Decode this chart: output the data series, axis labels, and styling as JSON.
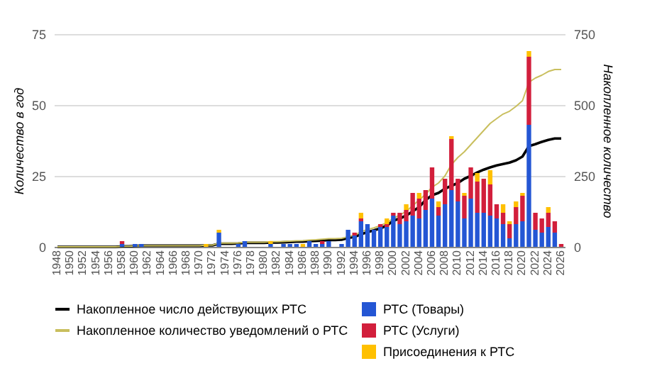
{
  "chart_data": {
    "type": "bar",
    "stacked": true,
    "categories": [
      "1948",
      null,
      "1950",
      null,
      "1952",
      null,
      "1954",
      null,
      "1956",
      null,
      "1958",
      null,
      "1960",
      null,
      "1962",
      null,
      "1964",
      null,
      "1966",
      null,
      "1968",
      null,
      "1970",
      null,
      "1972",
      null,
      "1974",
      null,
      "1976",
      null,
      "1978",
      null,
      "1980",
      null,
      "1982",
      null,
      "1984",
      null,
      "1986",
      null,
      "1988",
      null,
      "1990",
      null,
      "1992",
      null,
      "1994",
      null,
      "1996",
      null,
      "1998",
      null,
      "2000",
      null,
      "2002",
      null,
      "2004",
      null,
      "2006",
      null,
      "2008",
      null,
      "2010",
      null,
      "2012",
      null,
      "2014",
      null,
      "2016",
      null,
      "2018",
      null,
      "2020",
      null,
      "2022",
      null,
      "2024",
      null,
      "2026"
    ],
    "series": [
      {
        "name": "РТС (Товары)",
        "color": "#2456d4",
        "type": "bar",
        "values": [
          0,
          0,
          0,
          0,
          0,
          0,
          0,
          0,
          0,
          0,
          1,
          0,
          1,
          1,
          0,
          0,
          0,
          0,
          0,
          0,
          0,
          0,
          0,
          0,
          0,
          5,
          0,
          0,
          1,
          2,
          0,
          0,
          0,
          1,
          0,
          1,
          1,
          1,
          0,
          2,
          1,
          1,
          2,
          0,
          1,
          6,
          4,
          9,
          8,
          6,
          7,
          7,
          11,
          8,
          9,
          11,
          10,
          13,
          17,
          11,
          15,
          20,
          16,
          10,
          17,
          12,
          12,
          11,
          10,
          8,
          3,
          8,
          9,
          43,
          6,
          5,
          7,
          5,
          0
        ]
      },
      {
        "name": "РТС (Услуги)",
        "color": "#d21f3c",
        "type": "bar",
        "values": [
          0,
          0,
          0,
          0,
          0,
          0,
          0,
          0,
          0,
          0,
          1,
          0,
          0,
          0,
          0,
          0,
          0,
          0,
          0,
          0,
          0,
          0,
          0,
          0,
          0,
          0,
          0,
          0,
          0,
          0,
          0,
          0,
          0,
          0,
          0,
          0,
          0,
          0,
          0,
          0,
          0,
          1,
          0,
          0,
          0,
          0,
          1,
          1,
          0,
          0,
          1,
          1,
          1,
          4,
          4,
          8,
          7,
          7,
          11,
          3,
          9,
          18,
          8,
          8,
          11,
          11,
          12,
          11,
          5,
          4,
          5,
          6,
          9,
          24,
          6,
          5,
          5,
          4,
          1
        ]
      },
      {
        "name": "Присоединения к РТС",
        "color": "#ffc000",
        "type": "bar",
        "values": [
          0,
          0,
          0,
          0,
          0,
          0,
          0,
          0,
          0,
          0,
          0,
          0,
          0,
          0,
          0,
          0,
          0,
          0,
          0,
          0,
          0,
          0,
          0,
          1,
          0,
          1,
          0,
          0,
          0,
          0,
          0,
          0,
          0,
          1,
          0,
          0,
          0,
          0,
          1,
          0,
          0,
          0,
          0,
          0,
          0,
          0,
          0,
          2,
          0,
          0,
          0,
          2,
          0,
          0,
          2,
          0,
          2,
          0,
          0,
          2,
          0,
          1,
          0,
          1,
          0,
          3,
          0,
          5,
          0,
          3,
          1,
          2,
          1,
          2,
          0,
          0,
          2,
          0,
          0
        ]
      },
      {
        "name": "Накопленное число действующих РТС",
        "color": "#000000",
        "type": "line",
        "axis": "y2",
        "values": [
          0,
          0,
          0,
          0,
          0,
          0,
          0,
          0,
          0,
          0,
          2,
          2,
          3,
          4,
          4,
          4,
          4,
          4,
          4,
          4,
          4,
          4,
          4,
          5,
          5,
          11,
          11,
          11,
          12,
          14,
          14,
          14,
          14,
          15,
          15,
          16,
          17,
          18,
          18,
          20,
          21,
          22,
          24,
          24,
          25,
          31,
          35,
          44,
          52,
          58,
          65,
          75,
          92,
          100,
          110,
          125,
          140,
          165,
          182,
          190,
          205,
          215,
          225,
          240,
          250,
          262,
          272,
          280,
          287,
          292,
          297,
          305,
          318,
          355,
          362,
          370,
          377,
          382,
          382
        ]
      },
      {
        "name": "Накопленное количество уведомлений о РТС",
        "color": "#c9bf5e",
        "type": "line",
        "axis": "y2",
        "values": [
          0,
          0,
          0,
          0,
          0,
          0,
          0,
          0,
          0,
          0,
          2,
          2,
          3,
          4,
          4,
          4,
          4,
          4,
          4,
          4,
          4,
          4,
          4,
          6,
          6,
          13,
          13,
          13,
          14,
          16,
          16,
          16,
          16,
          18,
          18,
          19,
          20,
          21,
          22,
          24,
          25,
          27,
          29,
          29,
          30,
          36,
          41,
          53,
          61,
          67,
          75,
          85,
          100,
          112,
          125,
          145,
          165,
          185,
          210,
          225,
          250,
          290,
          315,
          335,
          360,
          385,
          410,
          435,
          452,
          468,
          478,
          495,
          515,
          580,
          595,
          605,
          618,
          625,
          625
        ]
      }
    ],
    "ylabel": "Количество в год",
    "y2label": "Накопленное количество",
    "ylim": [
      0,
      75
    ],
    "yticks": [
      0,
      25,
      50,
      75
    ],
    "y2lim": [
      0,
      750
    ],
    "y2ticks": [
      0,
      250,
      500,
      750
    ],
    "grid": "y",
    "legend": "bottom"
  }
}
